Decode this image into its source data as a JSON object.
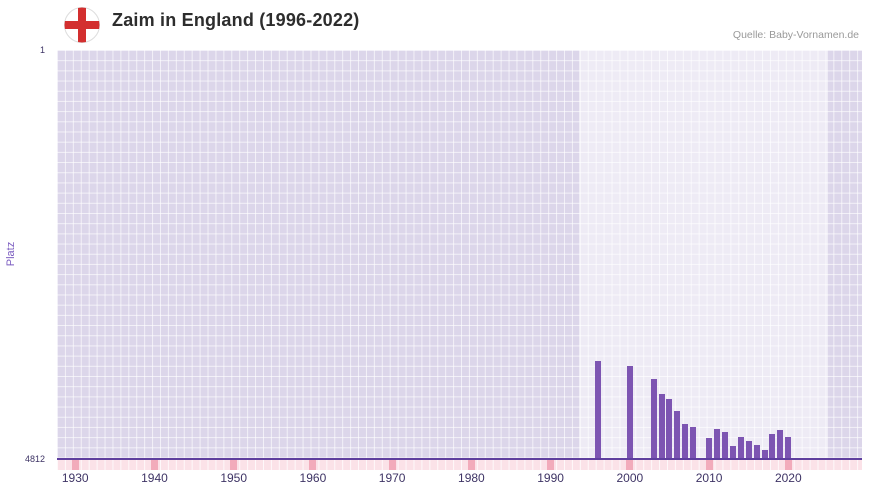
{
  "header": {
    "title": "Zaim in England (1996-2022)",
    "source": "Quelle: Baby-Vornamen.de"
  },
  "axes": {
    "y_top": "1",
    "y_bottom": "4812",
    "y_label": "Platz"
  },
  "chart_data": {
    "type": "bar",
    "title": "Zaim in England (1996-2022)",
    "xlabel": "",
    "ylabel": "Platz",
    "y_min": 1,
    "y_max": 4812,
    "y_inverted": true,
    "grid": true,
    "legend": false,
    "x_range": [
      1927.7,
      2029.3
    ],
    "x_ticks": [
      1930,
      1940,
      1950,
      1960,
      1970,
      1980,
      1990,
      2000,
      2010,
      2020
    ],
    "highlight_range": [
      1993.6,
      2025.0
    ],
    "series": [
      {
        "name": "Platz",
        "points": [
          {
            "year": 1996,
            "value": 3670
          },
          {
            "year": 2000,
            "value": 3730
          },
          {
            "year": 2003,
            "value": 3880
          },
          {
            "year": 2004,
            "value": 4060
          },
          {
            "year": 2005,
            "value": 4120
          },
          {
            "year": 2006,
            "value": 4260
          },
          {
            "year": 2007,
            "value": 4410
          },
          {
            "year": 2008,
            "value": 4445
          },
          {
            "year": 2010,
            "value": 4575
          },
          {
            "year": 2011,
            "value": 4470
          },
          {
            "year": 2012,
            "value": 4505
          },
          {
            "year": 2013,
            "value": 4670
          },
          {
            "year": 2014,
            "value": 4565
          },
          {
            "year": 2015,
            "value": 4610
          },
          {
            "year": 2016,
            "value": 4660
          },
          {
            "year": 2017,
            "value": 4720
          },
          {
            "year": 2018,
            "value": 4530
          },
          {
            "year": 2019,
            "value": 4480
          },
          {
            "year": 2020,
            "value": 4565
          }
        ]
      }
    ],
    "colors": {
      "bar": "#7d55b2",
      "plot_bg": "#dcd6ea",
      "grid": "#ffffff",
      "axis_line": "#5f3f9e",
      "tick_label": "#3e3465",
      "strip_bg": "#fbe2e8",
      "strip_marker": "#f2abbb"
    }
  }
}
